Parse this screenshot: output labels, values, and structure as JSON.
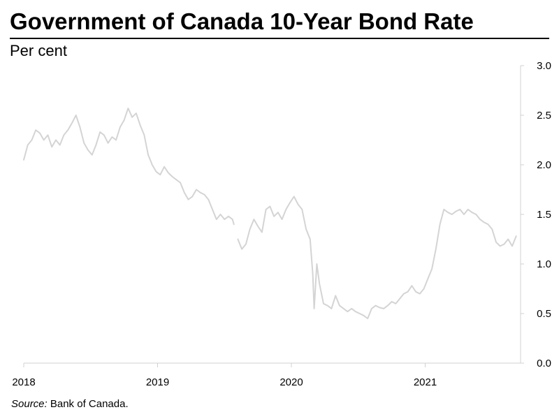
{
  "title": "Government of Canada 10-Year Bond Rate",
  "subtitle": "Per cent",
  "source": {
    "label": "Source:",
    "text": " Bank of Canada."
  },
  "chart_data": {
    "type": "line",
    "title": "Government of Canada 10-Year Bond Rate",
    "ylabel": "Per cent",
    "xlabel": "",
    "x_ticks": [
      "2018",
      "2019",
      "2020",
      "2021"
    ],
    "y_ticks": [
      "0.0",
      "0.5",
      "1.0",
      "1.5",
      "2.0",
      "2.5",
      "3.0"
    ],
    "xlim": [
      2018.0,
      2021.7
    ],
    "ylim": [
      0,
      3.0
    ],
    "y_axis_side": "right",
    "grid": false,
    "line_color": "#d4d4d4",
    "series": [
      {
        "x": [
          2018.0,
          2018.03,
          2018.06,
          2018.09,
          2018.12,
          2018.15,
          2018.18,
          2018.21,
          2018.24,
          2018.27,
          2018.3,
          2018.33,
          2018.36,
          2018.39,
          2018.42,
          2018.45,
          2018.48,
          2018.51,
          2018.54,
          2018.57,
          2018.6,
          2018.63,
          2018.66,
          2018.69,
          2018.72,
          2018.75,
          2018.78,
          2018.81,
          2018.84,
          2018.87,
          2018.9,
          2018.93,
          2018.96,
          2018.99,
          2019.02,
          2019.05,
          2019.08,
          2019.11,
          2019.14,
          2019.17,
          2019.2,
          2019.23,
          2019.26,
          2019.29,
          2019.32,
          2019.35,
          2019.38,
          2019.41,
          2019.44,
          2019.47,
          2019.5,
          2019.53,
          2019.56,
          2019.57
        ],
        "y": [
          2.05,
          2.2,
          2.25,
          2.35,
          2.32,
          2.25,
          2.3,
          2.18,
          2.25,
          2.2,
          2.3,
          2.35,
          2.42,
          2.5,
          2.38,
          2.22,
          2.15,
          2.1,
          2.2,
          2.33,
          2.3,
          2.22,
          2.28,
          2.25,
          2.38,
          2.45,
          2.57,
          2.48,
          2.52,
          2.4,
          2.3,
          2.1,
          2.0,
          1.93,
          1.9,
          1.98,
          1.92,
          1.88,
          1.85,
          1.82,
          1.72,
          1.65,
          1.68,
          1.75,
          1.72,
          1.7,
          1.65,
          1.55,
          1.45,
          1.5,
          1.45,
          1.48,
          1.45,
          1.4
        ]
      },
      {
        "x": [
          2019.6,
          2019.63,
          2019.66,
          2019.69,
          2019.72,
          2019.75,
          2019.78,
          2019.81,
          2019.84,
          2019.87,
          2019.9,
          2019.93,
          2019.96,
          2019.99,
          2020.02,
          2020.05,
          2020.08,
          2020.11,
          2020.14,
          2020.16,
          2020.17,
          2020.19,
          2020.21,
          2020.24,
          2020.27,
          2020.3,
          2020.33,
          2020.36,
          2020.39,
          2020.42,
          2020.45,
          2020.48,
          2020.51,
          2020.54,
          2020.57,
          2020.6,
          2020.63,
          2020.66,
          2020.69,
          2020.72,
          2020.75,
          2020.78,
          2020.81,
          2020.84,
          2020.87,
          2020.9,
          2020.93,
          2020.96,
          2020.99,
          2021.02,
          2021.05,
          2021.08,
          2021.11,
          2021.14,
          2021.17,
          2021.2,
          2021.23,
          2021.26,
          2021.29,
          2021.32,
          2021.35,
          2021.38,
          2021.41,
          2021.44,
          2021.47,
          2021.5,
          2021.53,
          2021.56,
          2021.59,
          2021.62,
          2021.65,
          2021.68
        ],
        "y": [
          1.25,
          1.15,
          1.2,
          1.35,
          1.45,
          1.38,
          1.32,
          1.55,
          1.58,
          1.48,
          1.52,
          1.45,
          1.55,
          1.62,
          1.68,
          1.6,
          1.55,
          1.35,
          1.25,
          0.9,
          0.55,
          1.0,
          0.8,
          0.6,
          0.58,
          0.55,
          0.68,
          0.58,
          0.55,
          0.52,
          0.55,
          0.52,
          0.5,
          0.48,
          0.45,
          0.55,
          0.58,
          0.56,
          0.55,
          0.58,
          0.62,
          0.6,
          0.65,
          0.7,
          0.72,
          0.78,
          0.72,
          0.7,
          0.75,
          0.85,
          0.95,
          1.15,
          1.4,
          1.55,
          1.52,
          1.5,
          1.53,
          1.55,
          1.5,
          1.55,
          1.52,
          1.5,
          1.45,
          1.42,
          1.4,
          1.35,
          1.22,
          1.18,
          1.2,
          1.25,
          1.18,
          1.28
        ]
      }
    ]
  }
}
